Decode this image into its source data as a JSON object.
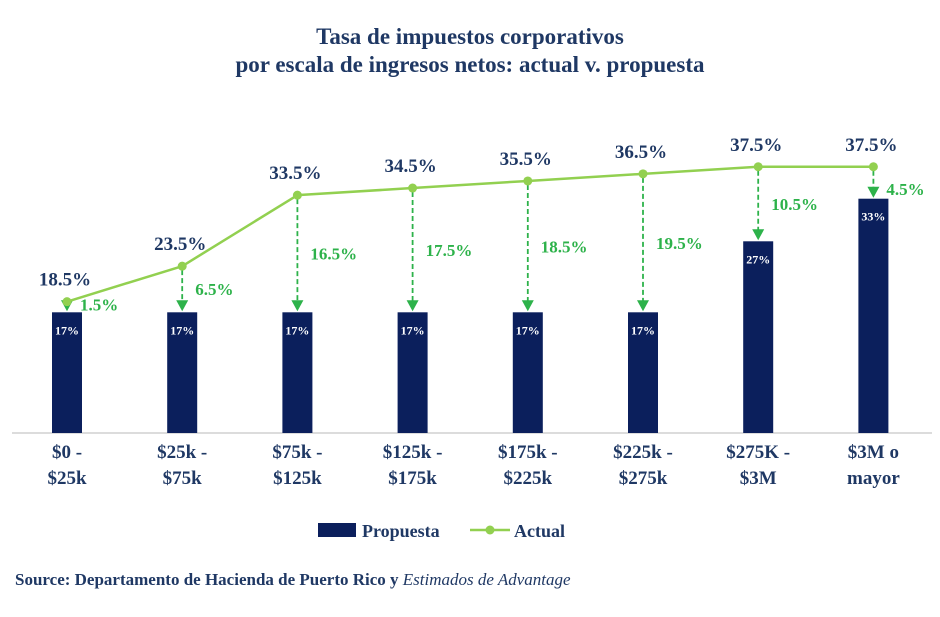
{
  "chart_data": {
    "type": "bar",
    "title_lines": [
      "Tasa de impuestos corporativos",
      "por escala de ingresos netos: actual v. propuesta"
    ],
    "categories": [
      [
        "$0 -",
        "$25k"
      ],
      [
        "$25k -",
        "$75k"
      ],
      [
        "$75k -",
        "$125k"
      ],
      [
        "$125k -",
        "$175k"
      ],
      [
        "$175k -",
        "$225k"
      ],
      [
        "$225k -",
        "$275k"
      ],
      [
        "$275K -",
        "$3M"
      ],
      [
        "$3M o",
        "mayor"
      ]
    ],
    "series": [
      {
        "name": "Propuesta",
        "kind": "bar",
        "color": "#0b1f5c",
        "values": [
          17,
          17,
          17,
          17,
          17,
          17,
          27,
          33
        ],
        "labels": [
          "17%",
          "17%",
          "17%",
          "17%",
          "17%",
          "17%",
          "27%",
          "33%"
        ]
      },
      {
        "name": "Actual",
        "kind": "line",
        "color": "#92d050",
        "values": [
          18.5,
          23.5,
          33.5,
          34.5,
          35.5,
          36.5,
          37.5,
          37.5
        ],
        "labels": [
          "18.5%",
          "23.5%",
          "33.5%",
          "34.5%",
          "35.5%",
          "36.5%",
          "37.5%",
          "37.5%"
        ]
      }
    ],
    "differences": {
      "color": "#2db24a",
      "values": [
        1.5,
        6.5,
        16.5,
        17.5,
        18.5,
        19.5,
        10.5,
        4.5
      ],
      "labels": [
        "1.5%",
        "6.5%",
        "16.5%",
        "17.5%",
        "18.5%",
        "19.5%",
        "10.5%",
        "4.5%"
      ]
    },
    "ylim": [
      0,
      45
    ],
    "xlabel": "",
    "ylabel": "",
    "grid": false,
    "legend": [
      "Propuesta",
      "Actual"
    ]
  },
  "source": {
    "prefix": "Source: Departamento de Hacienda de Puerto Rico y ",
    "italic": "Estimados de Advantage"
  }
}
